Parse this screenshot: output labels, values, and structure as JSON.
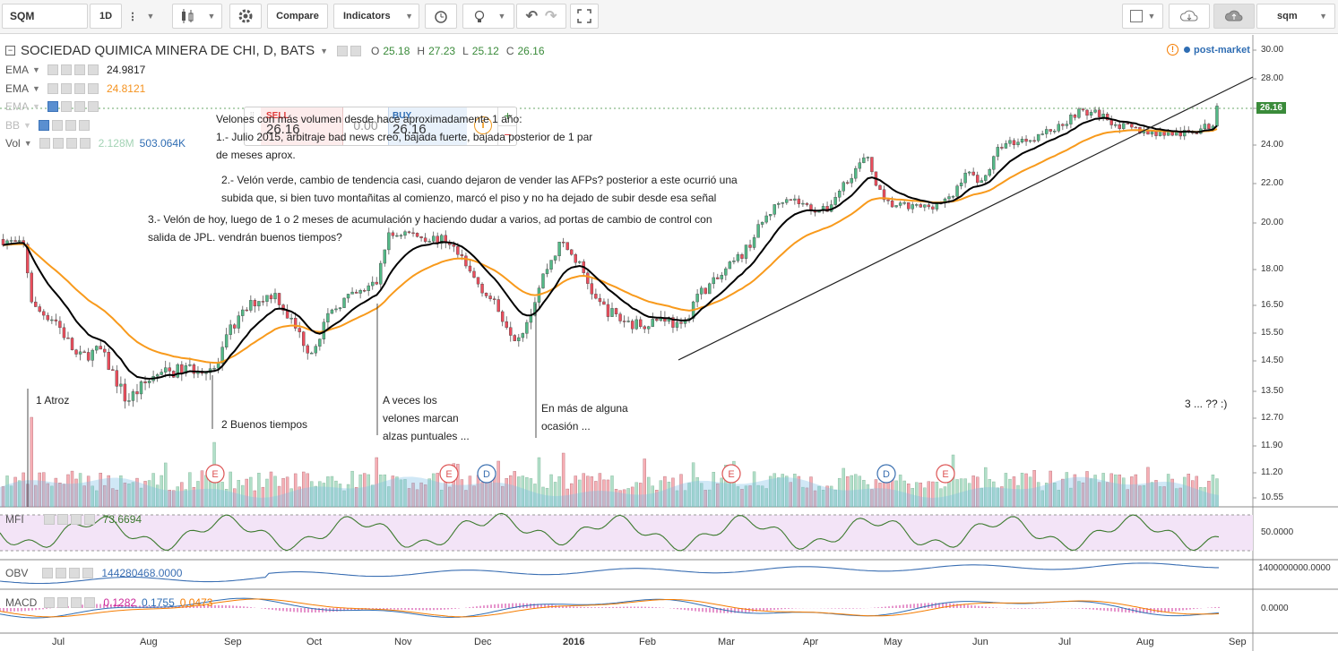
{
  "toolbar": {
    "symbol": "SQM",
    "interval": "1D",
    "compare_label": "Compare",
    "indicators_label": "Indicators",
    "symbol_right": "sqm"
  },
  "header": {
    "title": "SOCIEDAD QUIMICA MINERA DE CHI, D, BATS",
    "o_label": "O",
    "o_value": "25.18",
    "h_label": "H",
    "h_value": "27.23",
    "l_label": "L",
    "l_value": "25.12",
    "c_label": "C",
    "c_value": "26.16",
    "post_market": "post-market"
  },
  "legend": {
    "ema1_label": "EMA",
    "ema1_value": "24.9817",
    "ema2_label": "EMA",
    "ema2_value": "24.8121",
    "ema3_label": "EMA",
    "bb_label": "BB",
    "vol_label": "Vol",
    "vol_value1": "2.128M",
    "vol_value2": "503.064K"
  },
  "trade": {
    "sell_label": "SELL",
    "sell_value": "26.16",
    "spread": "0.00",
    "buy_label": "BUY",
    "buy_value": "26.16",
    "plus": "+",
    "minus": "−"
  },
  "annotations": {
    "note_title": "Velones con más volumen desde hace aproximadamente 1 año:",
    "note_1a": "1.- Julio 2015, arbitraje bad news creo, bajada fuerte, bajada posterior de 1 par",
    "note_1b": "de meses aprox.",
    "note_2a": "2.- Velón verde, cambio de tendencia casi, cuando dejaron de vender las AFPs? posterior a este ocurrió una",
    "note_2b": "subida que, si bien tuvo montañitas al comienzo, marcó el piso y no ha dejado de subir desde esa señal",
    "note_3a": "3.- Velón de hoy, luego de 1 o 2 meses de acumulación y haciendo dudar a varios, ad portas de cambio de control con",
    "note_3b": "salida de JPL. vendrán buenos tiempos?",
    "atroz": "1 Atroz",
    "buenos": "2 Buenos tiempos",
    "aveces1": "A veces los",
    "aveces2": "velones marcan",
    "aveces3": "alzas puntuales ...",
    "enmas1": "En más de alguna",
    "enmas2": "ocasión ...",
    "tres": "3 ... ?? :)"
  },
  "price_axis": [
    "30.00",
    "28.00",
    "26.00",
    "24.00",
    "22.00",
    "20.00",
    "18.00",
    "16.50",
    "15.50",
    "14.50",
    "13.50",
    "12.70",
    "11.90",
    "11.20",
    "10.55"
  ],
  "price_tag": "26.16",
  "time_axis": [
    "Jul",
    "Aug",
    "Sep",
    "Oct",
    "Nov",
    "Dec",
    "2016",
    "Feb",
    "Mar",
    "Apr",
    "May",
    "Jun",
    "Jul",
    "Aug",
    "Sep"
  ],
  "events": [
    "E",
    "E",
    "D",
    "E",
    "D",
    "E"
  ],
  "mfi": {
    "label": "MFI",
    "value": "73.6694",
    "axis": "50.0000"
  },
  "obv": {
    "label": "OBV",
    "value": "144280468.0000",
    "axis": "1400000000.0000"
  },
  "macd": {
    "label": "MACD",
    "v1": "0.1282",
    "v2": "0.1755",
    "v3": "0.0473",
    "axis": "0.0000"
  },
  "colors": {
    "up": "#53b987",
    "down": "#eb4d5c",
    "ema_fast": "#000000",
    "ema_slow": "#f89a1c",
    "mfi": "#3c7a2e",
    "obv": "#3b6fb3"
  }
}
